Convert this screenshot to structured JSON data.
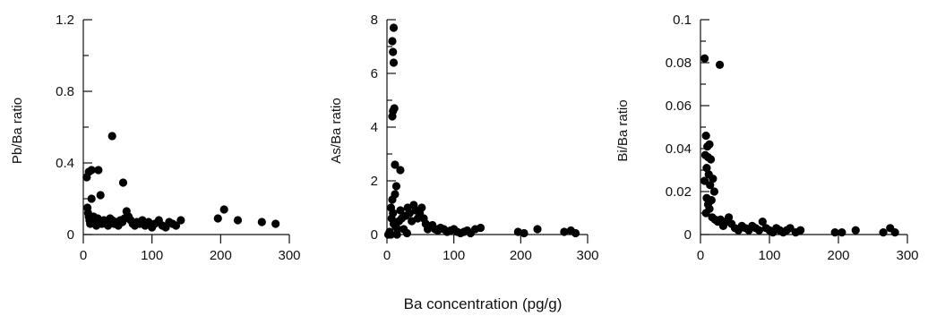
{
  "shared_xlabel": "Ba concentration (pg/g)",
  "chart_data": [
    {
      "type": "scatter",
      "ylabel": "Pb/Ba ratio",
      "xlabel": "",
      "xlim": [
        0,
        300
      ],
      "ylim": [
        0,
        1.2
      ],
      "xticks": [
        0,
        100,
        200,
        300
      ],
      "xtick_labels": [
        "0",
        "100",
        "200",
        "300"
      ],
      "yticks": [
        0,
        0.4,
        0.8,
        1.2
      ],
      "ytick_labels": [
        "0",
        "0.4",
        "0.8",
        "1.2"
      ],
      "y_minor_step": 0.2,
      "grid": false,
      "points": [
        [
          5,
          0.32
        ],
        [
          8,
          0.35
        ],
        [
          12,
          0.36
        ],
        [
          22,
          0.36
        ],
        [
          42,
          0.55
        ],
        [
          58,
          0.29
        ],
        [
          25,
          0.22
        ],
        [
          12,
          0.2
        ],
        [
          6,
          0.15
        ],
        [
          7,
          0.12
        ],
        [
          8,
          0.1
        ],
        [
          9,
          0.08
        ],
        [
          10,
          0.06
        ],
        [
          11,
          0.09
        ],
        [
          13,
          0.07
        ],
        [
          15,
          0.1
        ],
        [
          17,
          0.08
        ],
        [
          19,
          0.05
        ],
        [
          21,
          0.09
        ],
        [
          24,
          0.07
        ],
        [
          27,
          0.06
        ],
        [
          30,
          0.08
        ],
        [
          33,
          0.06
        ],
        [
          36,
          0.05
        ],
        [
          39,
          0.09
        ],
        [
          42,
          0.08
        ],
        [
          45,
          0.06
        ],
        [
          48,
          0.07
        ],
        [
          51,
          0.05
        ],
        [
          54,
          0.08
        ],
        [
          57,
          0.07
        ],
        [
          60,
          0.09
        ],
        [
          63,
          0.13
        ],
        [
          66,
          0.1
        ],
        [
          69,
          0.08
        ],
        [
          72,
          0.06
        ],
        [
          75,
          0.05
        ],
        [
          78,
          0.07
        ],
        [
          82,
          0.06
        ],
        [
          86,
          0.08
        ],
        [
          90,
          0.05
        ],
        [
          95,
          0.07
        ],
        [
          100,
          0.04
        ],
        [
          104,
          0.06
        ],
        [
          110,
          0.08
        ],
        [
          115,
          0.05
        ],
        [
          120,
          0.04
        ],
        [
          125,
          0.07
        ],
        [
          130,
          0.06
        ],
        [
          135,
          0.05
        ],
        [
          142,
          0.08
        ],
        [
          196,
          0.09
        ],
        [
          205,
          0.14
        ],
        [
          225,
          0.08
        ],
        [
          260,
          0.07
        ],
        [
          280,
          0.06
        ]
      ]
    },
    {
      "type": "scatter",
      "ylabel": "As/Ba ratio",
      "xlabel": "",
      "xlim": [
        0,
        300
      ],
      "ylim": [
        0,
        8
      ],
      "xticks": [
        0,
        100,
        200,
        300
      ],
      "xtick_labels": [
        "0",
        "100",
        "200",
        "300"
      ],
      "yticks": [
        0,
        2,
        4,
        6,
        8
      ],
      "ytick_labels": [
        "0",
        "2",
        "4",
        "6",
        "8"
      ],
      "y_minor_step": 1,
      "grid": false,
      "points": [
        [
          10,
          7.7
        ],
        [
          8,
          7.2
        ],
        [
          9,
          6.8
        ],
        [
          10,
          6.4
        ],
        [
          11,
          4.7
        ],
        [
          9,
          4.6
        ],
        [
          8,
          4.4
        ],
        [
          12,
          2.6
        ],
        [
          20,
          2.4
        ],
        [
          14,
          1.8
        ],
        [
          12,
          1.5
        ],
        [
          8,
          1.3
        ],
        [
          6,
          1.0
        ],
        [
          9,
          0.8
        ],
        [
          7,
          0.6
        ],
        [
          10,
          0.4
        ],
        [
          13,
          0.3
        ],
        [
          16,
          0.2
        ],
        [
          18,
          0.5
        ],
        [
          20,
          0.9
        ],
        [
          22,
          0.6
        ],
        [
          25,
          0.2
        ],
        [
          28,
          0.7
        ],
        [
          31,
          1.0
        ],
        [
          34,
          0.8
        ],
        [
          37,
          0.5
        ],
        [
          40,
          1.1
        ],
        [
          43,
          0.9
        ],
        [
          46,
          0.6
        ],
        [
          49,
          0.8
        ],
        [
          52,
          1.0
        ],
        [
          55,
          0.6
        ],
        [
          58,
          0.4
        ],
        [
          61,
          0.2
        ],
        [
          64,
          0.3
        ],
        [
          68,
          0.35
        ],
        [
          72,
          0.2
        ],
        [
          76,
          0.15
        ],
        [
          80,
          0.25
        ],
        [
          85,
          0.2
        ],
        [
          90,
          0.1
        ],
        [
          95,
          0.15
        ],
        [
          100,
          0.2
        ],
        [
          105,
          0.1
        ],
        [
          110,
          0.05
        ],
        [
          115,
          0.1
        ],
        [
          120,
          0.15
        ],
        [
          125,
          0.05
        ],
        [
          132,
          0.2
        ],
        [
          140,
          0.25
        ],
        [
          196,
          0.1
        ],
        [
          205,
          0.05
        ],
        [
          225,
          0.2
        ],
        [
          265,
          0.1
        ],
        [
          275,
          0.15
        ],
        [
          282,
          0.05
        ],
        [
          2,
          0.0
        ],
        [
          4,
          0.1
        ],
        [
          6,
          0.0
        ],
        [
          15,
          0.0
        ],
        [
          30,
          0.05
        ]
      ]
    },
    {
      "type": "scatter",
      "ylabel": "Bi/Ba ratio",
      "xlabel": "",
      "xlim": [
        0,
        300
      ],
      "ylim": [
        0,
        0.1
      ],
      "xticks": [
        0,
        100,
        200,
        300
      ],
      "xtick_labels": [
        "0",
        "100",
        "200",
        "300"
      ],
      "yticks": [
        0,
        0.02,
        0.04,
        0.06,
        0.08,
        0.1
      ],
      "ytick_labels": [
        "0",
        "0.02",
        "0.04",
        "0.06",
        "0.08",
        "0.1"
      ],
      "y_minor_step": 0.01,
      "grid": false,
      "points": [
        [
          6,
          0.082
        ],
        [
          28,
          0.079
        ],
        [
          8,
          0.046
        ],
        [
          10,
          0.041
        ],
        [
          13,
          0.042
        ],
        [
          7,
          0.037
        ],
        [
          11,
          0.036
        ],
        [
          15,
          0.035
        ],
        [
          9,
          0.031
        ],
        [
          12,
          0.028
        ],
        [
          18,
          0.026
        ],
        [
          6,
          0.025
        ],
        [
          14,
          0.023
        ],
        [
          20,
          0.02
        ],
        [
          9,
          0.017
        ],
        [
          16,
          0.016
        ],
        [
          11,
          0.014
        ],
        [
          13,
          0.012
        ],
        [
          8,
          0.01
        ],
        [
          17,
          0.008
        ],
        [
          21,
          0.007
        ],
        [
          25,
          0.006
        ],
        [
          29,
          0.007
        ],
        [
          33,
          0.004
        ],
        [
          37,
          0.006
        ],
        [
          41,
          0.008
        ],
        [
          45,
          0.005
        ],
        [
          50,
          0.003
        ],
        [
          55,
          0.002
        ],
        [
          60,
          0.004
        ],
        [
          65,
          0.003
        ],
        [
          70,
          0.002
        ],
        [
          75,
          0.004
        ],
        [
          80,
          0.003
        ],
        [
          85,
          0.002
        ],
        [
          90,
          0.006
        ],
        [
          95,
          0.003
        ],
        [
          100,
          0.002
        ],
        [
          105,
          0.001
        ],
        [
          110,
          0.003
        ],
        [
          115,
          0.002
        ],
        [
          120,
          0.001
        ],
        [
          125,
          0.002
        ],
        [
          130,
          0.003
        ],
        [
          138,
          0.001
        ],
        [
          145,
          0.002
        ],
        [
          195,
          0.001
        ],
        [
          205,
          0.001
        ],
        [
          225,
          0.002
        ],
        [
          265,
          0.001
        ],
        [
          275,
          0.003
        ],
        [
          282,
          0.001
        ]
      ]
    }
  ]
}
